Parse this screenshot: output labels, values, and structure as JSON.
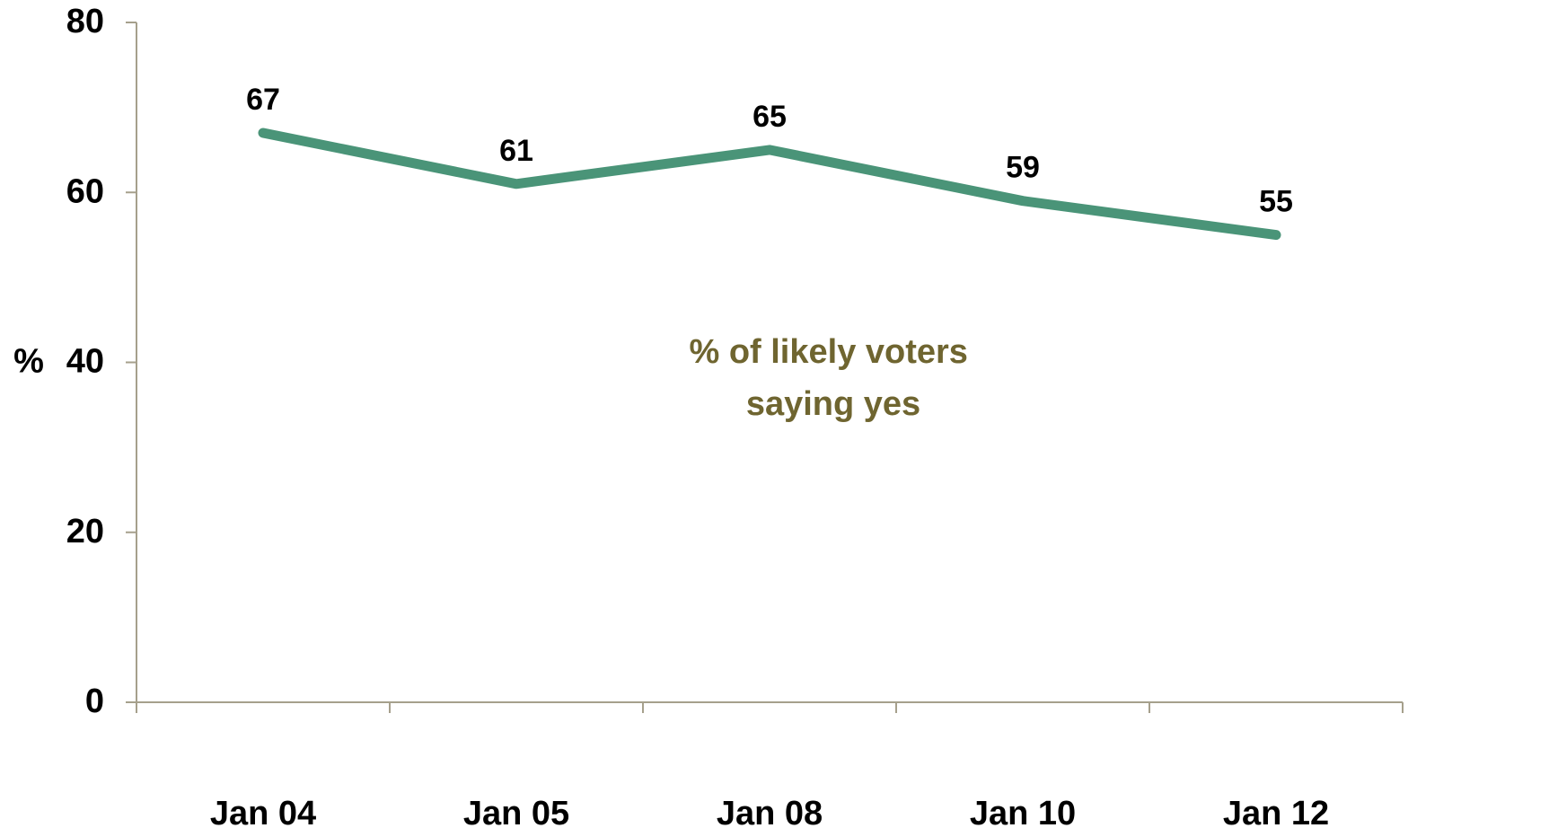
{
  "chart_data": {
    "type": "line",
    "categories": [
      "Jan 04",
      "Jan 05",
      "Jan 08",
      "Jan 10",
      "Jan 12"
    ],
    "series": [
      {
        "values": [
          67,
          61,
          65,
          59,
          55
        ]
      }
    ],
    "ylabel": "%",
    "xlabel": "",
    "ylim": [
      0,
      80
    ],
    "yticks": [
      0,
      20,
      40,
      60,
      80
    ],
    "data_labels": [
      "67",
      "61",
      "65",
      "59",
      "55"
    ],
    "annotation": {
      "lines": [
        "% of likely voters",
        "saying yes"
      ]
    },
    "grid": false,
    "legend": "none",
    "colors": {
      "line": "#4a9478",
      "axis": "#a6a08c",
      "annotation": "#6f6530",
      "text": "#000000"
    }
  }
}
